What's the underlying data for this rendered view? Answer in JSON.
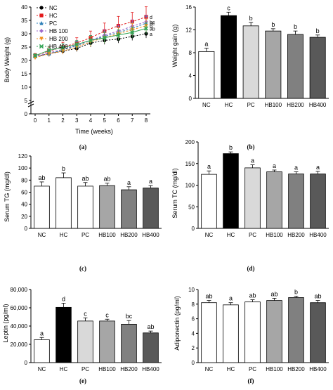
{
  "chart_data": [
    {
      "type": "line",
      "panel": "(a)",
      "ylabel": "Body Weight (g)",
      "xlabel": "Time (weeks)",
      "x": [
        0,
        1,
        2,
        3,
        4,
        5,
        6,
        7,
        8
      ],
      "ylim": [
        0,
        40
      ],
      "yticks": [
        0,
        5,
        10,
        15,
        20,
        25,
        30,
        35,
        40
      ],
      "ytick_labels": [
        "0",
        "5",
        "10",
        "15",
        "20",
        "25",
        "30",
        "35",
        "40"
      ],
      "xtick_labels": [
        "0",
        "1",
        "2",
        "3",
        "4",
        "5",
        "6",
        "7",
        "8"
      ],
      "yaxis_break": true,
      "series": [
        {
          "name": "NC",
          "color": "#000000",
          "marker": "circle",
          "values": [
            21.5,
            22.5,
            23.5,
            24.5,
            26.5,
            27.5,
            28.0,
            29.0,
            30.0
          ],
          "errors": [
            0.8,
            1.0,
            1.0,
            1.2,
            1.5,
            1.5,
            1.5,
            1.5,
            1.6
          ],
          "letter": "a"
        },
        {
          "name": "HC",
          "color": "#e31a1c",
          "marker": "square",
          "values": [
            21.8,
            23.5,
            25.0,
            26.5,
            28.5,
            31.0,
            33.0,
            34.5,
            36.3
          ],
          "errors": [
            0.8,
            1.5,
            1.8,
            2.0,
            2.5,
            3.0,
            3.5,
            3.5,
            3.8
          ],
          "letter": "d"
        },
        {
          "name": "PC",
          "color": "#2c7fb8",
          "marker": "triangle",
          "values": [
            21.5,
            22.5,
            24.0,
            25.5,
            27.5,
            29.0,
            30.5,
            32.0,
            34.0
          ],
          "errors": [
            0.6,
            1.0,
            1.2,
            1.5,
            1.8,
            2.0,
            2.2,
            2.4,
            2.5
          ],
          "letter": "bc"
        },
        {
          "name": "HB 100",
          "color": "#9e68c9",
          "marker": "diamond",
          "values": [
            21.5,
            22.8,
            24.2,
            25.8,
            27.5,
            29.5,
            31.0,
            32.8,
            34.5
          ],
          "errors": [
            0.6,
            1.0,
            1.2,
            1.5,
            1.8,
            2.0,
            2.2,
            2.4,
            2.5
          ],
          "letter": "bc"
        },
        {
          "name": "HB 200",
          "color": "#f28e1c",
          "marker": "triangle-down",
          "values": [
            21.0,
            22.5,
            23.5,
            25.0,
            27.0,
            28.5,
            30.0,
            31.5,
            33.0
          ],
          "errors": [
            0.6,
            1.0,
            1.2,
            1.5,
            1.8,
            2.0,
            2.2,
            2.4,
            2.5
          ],
          "letter": "b"
        },
        {
          "name": "HB 400",
          "color": "#31a354",
          "marker": "cross",
          "values": [
            21.8,
            23.8,
            24.8,
            26.0,
            27.5,
            28.5,
            29.5,
            30.5,
            32.0
          ],
          "errors": [
            0.6,
            1.5,
            1.5,
            1.5,
            1.8,
            2.0,
            2.0,
            2.0,
            2.2
          ],
          "letter": "ab"
        }
      ]
    },
    {
      "type": "bar",
      "panel": "(b)",
      "ylabel": "Weight gain (g)",
      "categories": [
        "NC",
        "HC",
        "PC",
        "HB100",
        "HB200",
        "HB400"
      ],
      "values": [
        8.2,
        14.5,
        12.7,
        11.8,
        11.2,
        10.7
      ],
      "errors": [
        0.6,
        0.6,
        0.6,
        0.4,
        0.6,
        0.4
      ],
      "letters": [
        "a",
        "c",
        "b",
        "b",
        "b",
        "b"
      ],
      "fills": [
        "#ffffff",
        "#000000",
        "#d9d9d9",
        "#a6a6a6",
        "#808080",
        "#595959"
      ],
      "ylim": [
        0,
        16
      ],
      "yticks": [
        0,
        4,
        8,
        12,
        16
      ],
      "ytick_labels": [
        "0",
        "4",
        "8",
        "12",
        "16"
      ]
    },
    {
      "type": "bar",
      "panel": "(c)",
      "ylabel": "Serum TG (mg/dl)",
      "categories": [
        "NC",
        "HC",
        "PC",
        "HB100",
        "HB200",
        "HB400"
      ],
      "values": [
        70,
        84,
        70,
        71,
        64,
        67
      ],
      "errors": [
        7,
        8,
        6,
        4,
        5,
        4
      ],
      "letters": [
        "ab",
        "b",
        "ab",
        "ab",
        "a",
        "a"
      ],
      "fills": [
        "#ffffff",
        "#ffffff",
        "#ffffff",
        "#a6a6a6",
        "#808080",
        "#595959"
      ],
      "ylim": [
        0,
        120
      ],
      "yticks": [
        0,
        20,
        40,
        60,
        80,
        100,
        120
      ],
      "ytick_labels": [
        "0",
        "20",
        "40",
        "60",
        "80",
        "100",
        "120"
      ]
    },
    {
      "type": "bar",
      "panel": "(d)",
      "ylabel": "Serum TC (mg/dl)",
      "categories": [
        "NC",
        "HC",
        "PC",
        "HB100",
        "HB200",
        "HB400"
      ],
      "values": [
        125,
        173,
        140,
        131,
        126,
        126
      ],
      "errors": [
        8,
        4,
        7,
        4,
        5,
        6
      ],
      "letters": [
        "a",
        "b",
        "a",
        "a",
        "a",
        "a"
      ],
      "fills": [
        "#ffffff",
        "#000000",
        "#d9d9d9",
        "#a6a6a6",
        "#808080",
        "#595959"
      ],
      "ylim": [
        0,
        200
      ],
      "yticks": [
        0,
        50,
        100,
        150,
        200
      ],
      "ytick_labels": [
        "0",
        "50",
        "100",
        "150",
        "200"
      ]
    },
    {
      "type": "bar",
      "panel": "(e)",
      "ylabel": "Leptin (pg/ml)",
      "categories": [
        "NC",
        "HC",
        "PC",
        "HB100",
        "HB200",
        "HB400"
      ],
      "values": [
        25000,
        60500,
        45500,
        45500,
        42000,
        32500
      ],
      "errors": [
        2500,
        4500,
        3500,
        2000,
        4000,
        2000
      ],
      "letters": [
        "a",
        "d",
        "c",
        "c",
        "bc",
        "ab"
      ],
      "fills": [
        "#ffffff",
        "#000000",
        "#d9d9d9",
        "#a6a6a6",
        "#808080",
        "#595959"
      ],
      "ylim": [
        0,
        80000
      ],
      "yticks": [
        0,
        20000,
        40000,
        60000,
        80000
      ],
      "ytick_labels": [
        "0",
        "20,000",
        "40,000",
        "60,000",
        "80,000"
      ]
    },
    {
      "type": "bar",
      "panel": "(f)",
      "ylabel": "Adiponectin (pg/ml)",
      "categories": [
        "NC",
        "HC",
        "PC",
        "HB100",
        "HB200",
        "HB400"
      ],
      "values": [
        8.2,
        7.9,
        8.3,
        8.5,
        8.9,
        8.2
      ],
      "errors": [
        0.3,
        0.3,
        0.3,
        0.3,
        0.2,
        0.3
      ],
      "letters": [
        "ab",
        "a",
        "ab",
        "ab",
        "b",
        "ab"
      ],
      "fills": [
        "#ffffff",
        "#ffffff",
        "#ffffff",
        "#a6a6a6",
        "#808080",
        "#595959"
      ],
      "ylim": [
        0,
        10
      ],
      "yticks": [
        0,
        2,
        4,
        6,
        8,
        10
      ],
      "ytick_labels": [
        "0",
        "2",
        "4",
        "6",
        "8",
        "10"
      ]
    }
  ]
}
